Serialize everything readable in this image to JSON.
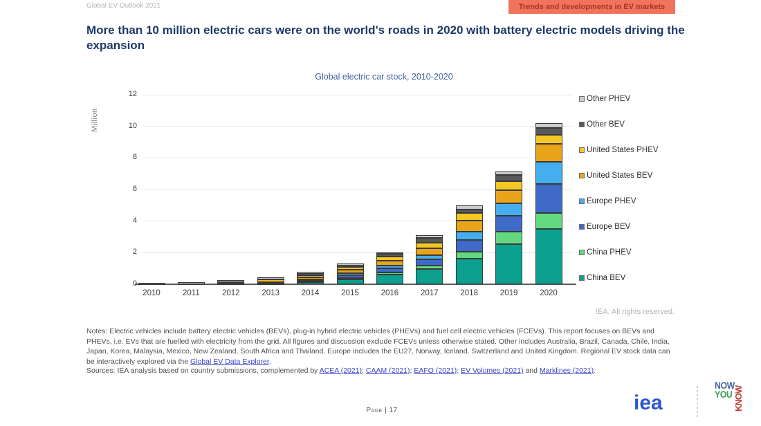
{
  "header": {
    "report_label": "Global EV Outlook 2021",
    "badge": "Trends and developments in EV markets",
    "title": "More than 10 million electric cars were on the world's roads in 2020 with battery electric models driving the expansion"
  },
  "chart_data": {
    "type": "bar",
    "stacked": true,
    "title": "Global electric car stock, 2010-2020",
    "xlabel": "",
    "ylabel": "Million",
    "ylim": [
      0,
      12
    ],
    "ytick_step": 2,
    "grid": true,
    "legend_position": "right",
    "categories": [
      "2010",
      "2011",
      "2012",
      "2013",
      "2014",
      "2015",
      "2016",
      "2017",
      "2018",
      "2019",
      "2020"
    ],
    "series": [
      {
        "name": "China BEV",
        "color": "#0ba18e",
        "values": [
          0.006,
          0.016,
          0.027,
          0.045,
          0.11,
          0.3,
          0.6,
          0.95,
          1.6,
          2.55,
          3.5
        ]
      },
      {
        "name": "China PHEV",
        "color": "#62d97f",
        "values": [
          0.0,
          0.0,
          0.003,
          0.006,
          0.02,
          0.09,
          0.15,
          0.25,
          0.45,
          0.8,
          1.0
        ]
      },
      {
        "name": "Europe BEV",
        "color": "#3f6ac8",
        "values": [
          0.005,
          0.012,
          0.027,
          0.055,
          0.11,
          0.18,
          0.26,
          0.38,
          0.75,
          0.97,
          1.85
        ]
      },
      {
        "name": "Europe PHEV",
        "color": "#44aeef",
        "values": [
          0.0,
          0.001,
          0.006,
          0.015,
          0.06,
          0.13,
          0.19,
          0.28,
          0.55,
          0.8,
          1.4
        ]
      },
      {
        "name": "United States BEV",
        "color": "#e9a41a",
        "values": [
          0.001,
          0.01,
          0.028,
          0.075,
          0.14,
          0.21,
          0.3,
          0.4,
          0.7,
          0.82,
          1.15
        ]
      },
      {
        "name": "United States PHEV",
        "color": "#f5c722",
        "values": [
          0.0,
          0.008,
          0.05,
          0.1,
          0.15,
          0.19,
          0.26,
          0.36,
          0.45,
          0.58,
          0.55
        ]
      },
      {
        "name": "Other BEV",
        "color": "#595959",
        "values": [
          0.005,
          0.015,
          0.035,
          0.07,
          0.09,
          0.11,
          0.16,
          0.33,
          0.25,
          0.38,
          0.45
        ]
      },
      {
        "name": "Other PHEV",
        "color": "#c9cbcd",
        "values": [
          0.0,
          0.001,
          0.004,
          0.014,
          0.02,
          0.04,
          0.08,
          0.15,
          0.25,
          0.25,
          0.3
        ]
      }
    ],
    "legend_order_top_to_bottom": [
      "Other PHEV",
      "Other BEV",
      "United States PHEV",
      "United States BEV",
      "Europe PHEV",
      "Europe BEV",
      "China PHEV",
      "China BEV"
    ]
  },
  "chart_footer": {
    "rights": "IEA. All rights reserved."
  },
  "notes": {
    "segments": [
      {
        "t": "Notes: Electric vehicles include battery electric vehicles (BEVs), plug-in hybrid electric vehicles (PHEVs) and fuel cell electric vehicles (FCEVs). This report focuses on BEVs and PHEVs, i.e. EVs that are fuelled with electricity from the grid. All figures and discussion exclude FCEVs unless otherwise stated. Other includes Australia, Brazil, Canada, Chile, India, Japan, Korea, Malaysia, Mexico, New Zealand, South Africa and Thailand. Europe includes the EU27, Norway, Iceland, Switzerland and United Kingdom. Regional EV stock data can be interactively explored via the ",
        "link": false
      },
      {
        "t": "Global EV Data Explorer",
        "link": true
      },
      {
        "t": ".",
        "link": false
      }
    ]
  },
  "sources": {
    "segments": [
      {
        "t": "Sources: IEA analysis based on country submissions, complemented by ",
        "link": false
      },
      {
        "t": "ACEA (2021)",
        "link": true
      },
      {
        "t": "; ",
        "link": false
      },
      {
        "t": "CAAM (2021)",
        "link": true
      },
      {
        "t": "; ",
        "link": false
      },
      {
        "t": "EAFO (2021)",
        "link": true
      },
      {
        "t": "; ",
        "link": false
      },
      {
        "t": "EV Volumes (2021)",
        "link": true
      },
      {
        "t": " and ",
        "link": false
      },
      {
        "t": "Marklines (2021)",
        "link": true
      },
      {
        "t": ".",
        "link": false
      }
    ]
  },
  "footer": {
    "page": "Page | 17",
    "iea_logo": "iea",
    "watermark": {
      "now": "NOW",
      "you": "YOU",
      "know": "KNOW",
      "star": "✶"
    }
  },
  "colors": {
    "badge_bg": "#f2735c",
    "badge_text": "#a83420",
    "title_navy": "#1d3a6b",
    "chart_title_blue": "#40639c",
    "link_blue": "#3b43c8",
    "iea_logo_blue": "#2b57cf"
  }
}
